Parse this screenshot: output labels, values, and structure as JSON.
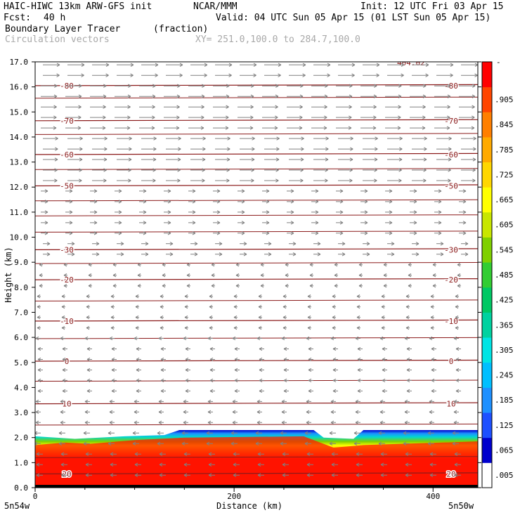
{
  "header": {
    "model": "HAIC-HIWC 13km ARW-GFS init",
    "org": "NCAR/MMM",
    "init": "Init: 12 UTC Fri 03 Apr 15",
    "fcst_label": "Fcst:",
    "fcst_value": "40 h",
    "valid": "Valid: 04 UTC Sun 05 Apr 15 (01 LST Sun 05 Apr 15)",
    "field": "Boundary Layer Tracer",
    "field_unit": "(fraction)",
    "vectors": "Circulation vectors",
    "xy": "XY= 251.0,100.0 to 284.7,100.0"
  },
  "footer": {
    "left_label": "5n54w",
    "right_label": "5n50w"
  },
  "colors": {
    "contour": "#8b1a1a",
    "vector": "#808080",
    "text": "#000000"
  },
  "chart_data": {
    "type": "cross-section",
    "xlabel": "Distance (km)",
    "ylabel": "Height (km)",
    "xlim": [
      0,
      445
    ],
    "ylim": [
      0,
      17
    ],
    "x_ticks": [
      0,
      200,
      400
    ],
    "y_ticks": [
      "0.0",
      "1.0",
      "2.0",
      "3.0",
      "4.0",
      "5.0",
      "6.0",
      "7.0",
      "8.0",
      "9.0",
      "10.0",
      "11.0",
      "12.0",
      "13.0",
      "14.0",
      "15.0",
      "16.0",
      "17.0"
    ],
    "colorbar": {
      "labels": [
        ".005",
        ".065",
        ".125",
        ".185",
        ".245",
        ".305",
        ".365",
        ".425",
        ".485",
        ".545",
        ".605",
        ".665",
        ".725",
        ".785",
        ".845",
        ".905"
      ],
      "top_label": "-",
      "colors": [
        "#ffffff",
        "#0000cd",
        "#1e50ff",
        "#1e90ff",
        "#00bfff",
        "#00e5e5",
        "#00d2a0",
        "#00c864",
        "#32cd32",
        "#7fd000",
        "#c8e600",
        "#ffff00",
        "#ffd700",
        "#ffaa00",
        "#ff7f00",
        "#ff4500",
        "#ff0000"
      ]
    },
    "temperature_contours": [
      {
        "label": "-80",
        "height": 16.05
      },
      {
        "label": "-70",
        "height": 14.65
      },
      {
        "label": "-60",
        "height": 13.3
      },
      {
        "label": "-50",
        "height": 12.05
      },
      {
        "label": "-30",
        "height": 9.5
      },
      {
        "label": "-20",
        "height": 8.3
      },
      {
        "label": "-10",
        "height": 6.65
      },
      {
        "label": "0",
        "height": 5.05
      },
      {
        "label": "10",
        "height": 3.35
      },
      {
        "label": "20",
        "height": 0.55
      }
    ],
    "other_contour_heights": [
      15.55,
      14.1,
      12.7,
      11.45,
      10.85,
      10.2,
      8.95,
      7.45,
      5.95,
      4.25,
      2.5,
      1.2
    ],
    "top_annotation": "404.02",
    "boundary_layer_top": [
      {
        "x": 0,
        "z": 2.05
      },
      {
        "x": 40,
        "z": 1.95
      },
      {
        "x": 90,
        "z": 2.05
      },
      {
        "x": 130,
        "z": 2.1
      },
      {
        "x": 145,
        "z": 2.3
      },
      {
        "x": 280,
        "z": 2.3
      },
      {
        "x": 290,
        "z": 2.0
      },
      {
        "x": 320,
        "z": 1.95
      },
      {
        "x": 330,
        "z": 2.3
      },
      {
        "x": 445,
        "z": 2.3
      }
    ],
    "mixed_layer_top": [
      {
        "x": 0,
        "z": 1.7
      },
      {
        "x": 30,
        "z": 1.8
      },
      {
        "x": 55,
        "z": 1.75
      },
      {
        "x": 100,
        "z": 1.9
      },
      {
        "x": 150,
        "z": 2.0
      },
      {
        "x": 270,
        "z": 2.05
      },
      {
        "x": 300,
        "z": 1.6
      },
      {
        "x": 330,
        "z": 1.7
      },
      {
        "x": 445,
        "z": 1.85
      }
    ]
  }
}
